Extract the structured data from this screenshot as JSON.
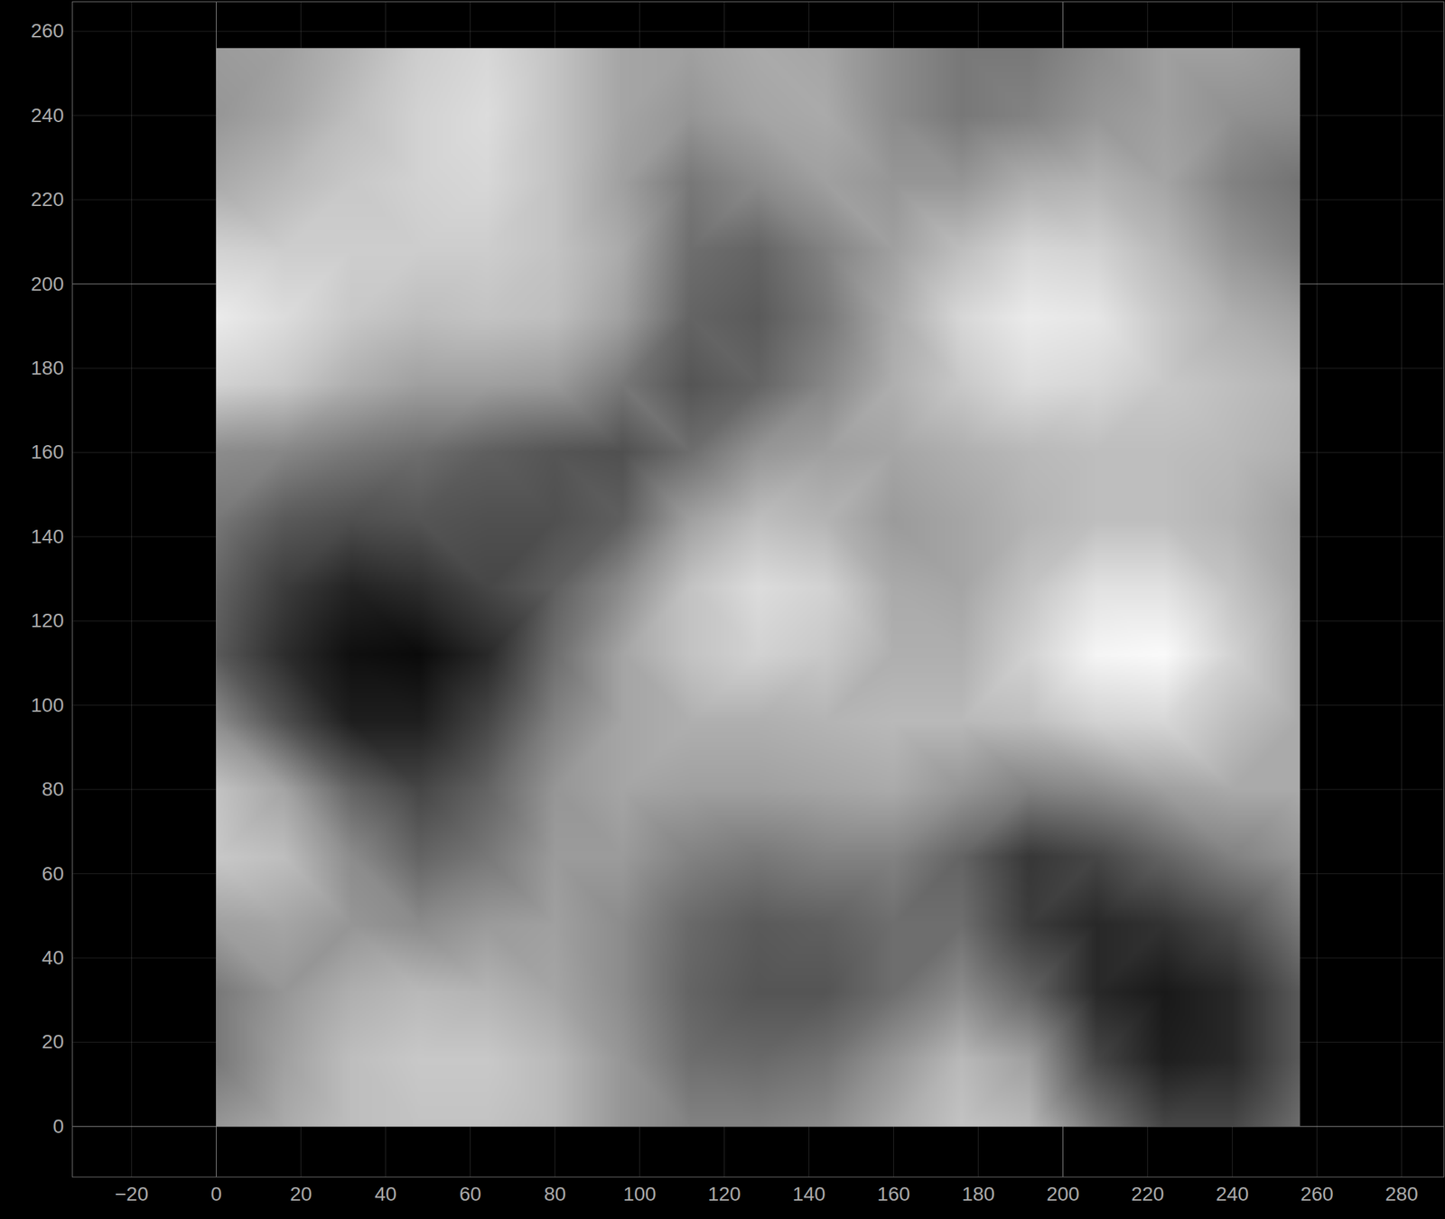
{
  "chart_data": {
    "type": "heatmap",
    "x": [
      0,
      16,
      32,
      48,
      64,
      80,
      96,
      112,
      128,
      144,
      160,
      176,
      192,
      208,
      224,
      240,
      256
    ],
    "y": [
      0,
      16,
      32,
      48,
      64,
      80,
      96,
      112,
      128,
      144,
      160,
      176,
      192,
      208,
      224,
      240,
      256
    ],
    "values": [
      [
        150,
        170,
        190,
        195,
        195,
        185,
        150,
        130,
        130,
        140,
        170,
        195,
        185,
        120,
        70,
        70,
        110
      ],
      [
        120,
        160,
        190,
        200,
        200,
        185,
        150,
        110,
        105,
        115,
        150,
        185,
        160,
        70,
        30,
        40,
        90
      ],
      [
        120,
        150,
        175,
        185,
        180,
        165,
        140,
        100,
        85,
        85,
        110,
        140,
        100,
        40,
        25,
        40,
        90
      ],
      [
        160,
        165,
        150,
        140,
        155,
        160,
        140,
        105,
        90,
        95,
        110,
        110,
        60,
        40,
        50,
        75,
        120
      ],
      [
        200,
        190,
        140,
        100,
        120,
        155,
        155,
        130,
        120,
        130,
        130,
        100,
        55,
        70,
        100,
        130,
        150
      ],
      [
        195,
        165,
        100,
        70,
        100,
        150,
        165,
        160,
        160,
        165,
        170,
        150,
        130,
        140,
        160,
        170,
        170
      ],
      [
        140,
        80,
        30,
        30,
        70,
        130,
        165,
        175,
        175,
        180,
        185,
        185,
        190,
        210,
        215,
        190,
        170
      ],
      [
        90,
        45,
        15,
        10,
        40,
        110,
        165,
        195,
        210,
        200,
        175,
        175,
        210,
        245,
        250,
        210,
        170
      ],
      [
        100,
        60,
        35,
        45,
        70,
        95,
        140,
        195,
        220,
        210,
        170,
        165,
        195,
        225,
        225,
        195,
        165
      ],
      [
        120,
        90,
        80,
        85,
        80,
        80,
        95,
        160,
        190,
        180,
        155,
        165,
        180,
        190,
        190,
        180,
        160
      ],
      [
        140,
        135,
        120,
        110,
        95,
        85,
        80,
        110,
        150,
        160,
        165,
        175,
        185,
        190,
        190,
        185,
        175
      ],
      [
        210,
        200,
        175,
        160,
        160,
        155,
        120,
        85,
        100,
        135,
        175,
        200,
        220,
        215,
        200,
        190,
        180
      ],
      [
        235,
        220,
        200,
        190,
        195,
        190,
        160,
        100,
        90,
        120,
        170,
        215,
        235,
        230,
        200,
        175,
        160
      ],
      [
        210,
        205,
        205,
        205,
        205,
        195,
        170,
        110,
        100,
        130,
        160,
        190,
        215,
        210,
        185,
        150,
        130
      ],
      [
        170,
        185,
        200,
        210,
        215,
        195,
        160,
        120,
        140,
        160,
        150,
        150,
        175,
        180,
        165,
        130,
        115
      ],
      [
        150,
        165,
        190,
        210,
        220,
        195,
        165,
        150,
        165,
        170,
        140,
        120,
        130,
        150,
        160,
        145,
        140
      ],
      [
        155,
        160,
        180,
        205,
        215,
        195,
        165,
        160,
        170,
        165,
        140,
        120,
        120,
        140,
        160,
        160,
        150
      ]
    ],
    "zlim": [
      0,
      255
    ],
    "xlim": [
      -34,
      290
    ],
    "ylim": [
      -12,
      267
    ],
    "xticks": [
      -20,
      0,
      20,
      40,
      60,
      80,
      100,
      120,
      140,
      160,
      180,
      200,
      220,
      240,
      260,
      280
    ],
    "yticks": [
      0,
      20,
      40,
      60,
      80,
      100,
      120,
      140,
      160,
      180,
      200,
      220,
      240,
      260
    ],
    "grid": true
  }
}
